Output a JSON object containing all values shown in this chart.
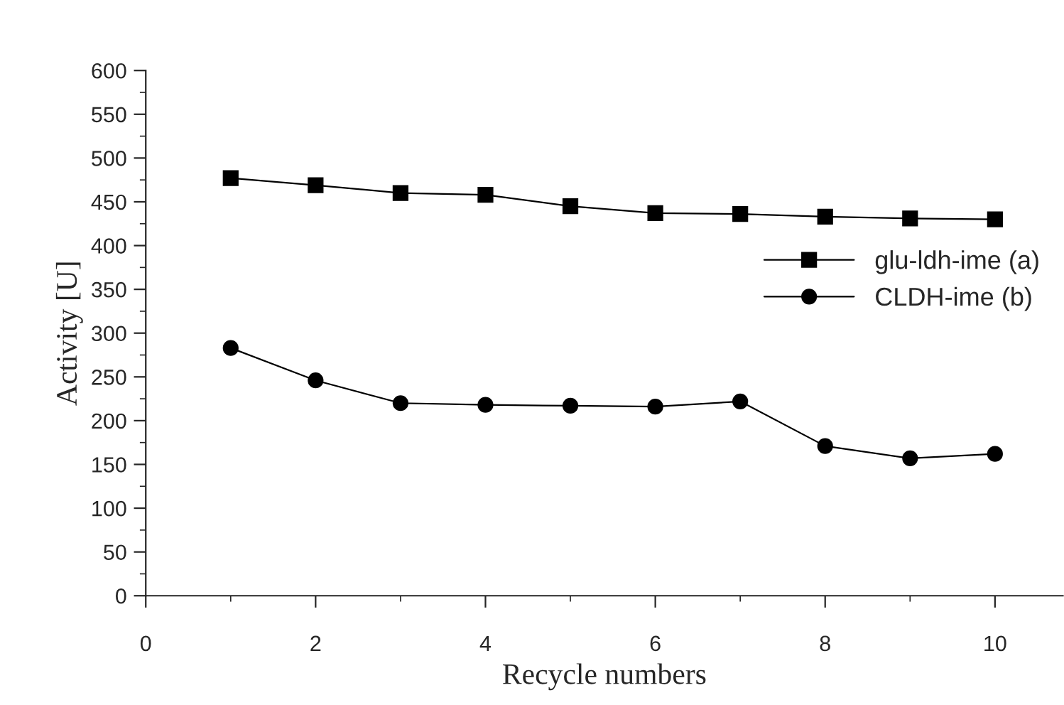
{
  "chart_data": {
    "type": "line",
    "xlabel": "Recycle numbers",
    "ylabel": "Activity [U]",
    "x": [
      1,
      2,
      3,
      4,
      5,
      6,
      7,
      8,
      9,
      10
    ],
    "series": [
      {
        "name": "glu-ldh-ime (a)",
        "color": "#000000",
        "marker": "square",
        "values": [
          477,
          469,
          460,
          458,
          445,
          437,
          436,
          433,
          431,
          430
        ]
      },
      {
        "name": "CLDH-ime (b)",
        "color": "#000000",
        "marker": "circle",
        "values": [
          283,
          246,
          220,
          218,
          217,
          216,
          222,
          171,
          157,
          162
        ]
      }
    ],
    "xlim": [
      0,
      10.8
    ],
    "xticks": [
      0,
      2,
      4,
      6,
      8,
      10
    ],
    "ylim": [
      0,
      600
    ],
    "yticks": [
      0,
      50,
      100,
      150,
      200,
      250,
      300,
      350,
      400,
      450,
      500,
      550,
      600
    ],
    "grid": false,
    "legend": "right",
    "line_style": "solid"
  }
}
